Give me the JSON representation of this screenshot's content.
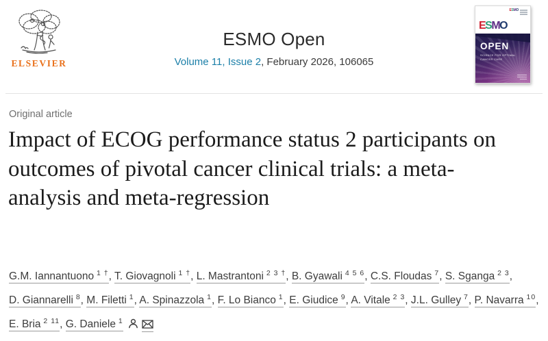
{
  "header": {
    "publisher_wordmark": "ELSEVIER",
    "journal_title": "ESMO Open",
    "volume_issue_link": "Volume 11, Issue 2",
    "issue_details": ", February 2026, 106065"
  },
  "cover": {
    "esmo_letters": [
      {
        "ch": "E",
        "color": "#cf1f2e"
      },
      {
        "ch": "S",
        "color": "#2f9e77"
      },
      {
        "ch": "M",
        "color": "#5f2d87"
      },
      {
        "ch": "O",
        "color": "#1f3a6d"
      }
    ],
    "open_label": "OPEN",
    "tagline": "SCIENCE FOR OPTIMAL\nCANCER CARE"
  },
  "article": {
    "category": "Original article",
    "title": "Impact of ECOG performance status 2 participants on outcomes of pivotal cancer clinical trials: a meta-analysis and meta-regression"
  },
  "authors": {
    "list": [
      {
        "name": "G.M. Iannantuono",
        "sup": "1 †"
      },
      {
        "name": "T. Giovagnoli",
        "sup": "1 †"
      },
      {
        "name": "L. Mastrantoni",
        "sup": "2 3 †"
      },
      {
        "name": "B. Gyawali",
        "sup": "4 5 6"
      },
      {
        "name": "C.S. Floudas",
        "sup": "7"
      },
      {
        "name": "S. Sganga",
        "sup": "2 3"
      },
      {
        "name": "D. Giannarelli",
        "sup": "8"
      },
      {
        "name": "M. Filetti",
        "sup": "1"
      },
      {
        "name": "A. Spinazzola",
        "sup": "1"
      },
      {
        "name": "F. Lo Bianco",
        "sup": "1"
      },
      {
        "name": "E. Giudice",
        "sup": "9"
      },
      {
        "name": "A. Vitale",
        "sup": "2 3"
      },
      {
        "name": "J.L. Gulley",
        "sup": "7"
      },
      {
        "name": "P. Navarra",
        "sup": "10"
      },
      {
        "name": "E. Bria",
        "sup": "2 11"
      },
      {
        "name": "G. Daniele",
        "sup": "1"
      }
    ],
    "separator": ", "
  },
  "colors": {
    "link_blue": "#1b7fa8",
    "elsevier_orange": "#e9711c",
    "muted_text": "#6f6f6f",
    "title_text": "#1b1b1b",
    "author_text": "#3c3c3c",
    "underline": "#9b9b9b",
    "divider": "#e3e3e3",
    "cover_navy": "#1a1640",
    "cover_purple_top": "#211c4e",
    "cover_magenta": "#9b3f95"
  }
}
